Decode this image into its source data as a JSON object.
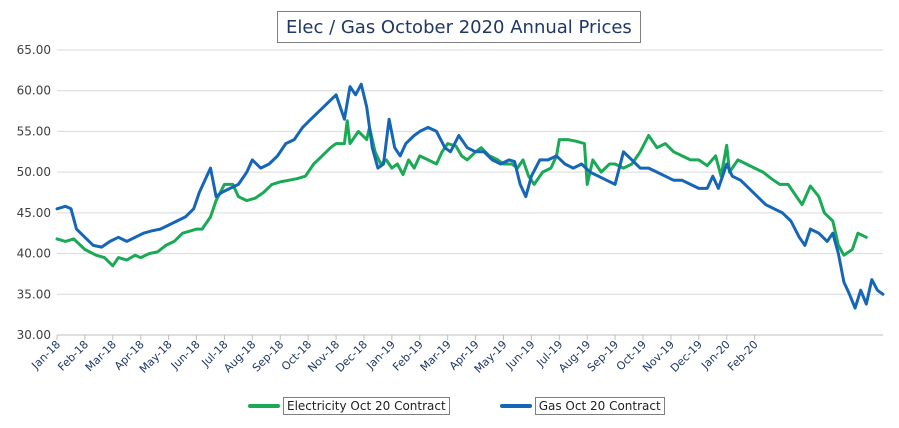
{
  "chart_data": {
    "type": "line",
    "title": "Elec / Gas October 2020 Annual Prices",
    "xlabel": "",
    "ylabel": "",
    "ylim": [
      30,
      65
    ],
    "yticks": [
      "30.00",
      "35.00",
      "40.00",
      "45.00",
      "50.00",
      "55.00",
      "60.00",
      "65.00"
    ],
    "x_categories": [
      "Jan-18",
      "Feb-18",
      "Mar-18",
      "Apr-18",
      "May-18",
      "Jun-18",
      "Jul-18",
      "Aug-18",
      "Sep-18",
      "Oct-18",
      "Nov-18",
      "Dec-18",
      "Jan-19",
      "Feb-19",
      "Mar-19",
      "Apr-19",
      "May-19",
      "Jun-19",
      "Jul-19",
      "Aug-19",
      "Sep-19",
      "Oct-19",
      "Nov-19",
      "Dec-19",
      "Jan-20",
      "Feb-20"
    ],
    "x_range_months": [
      0,
      26.4
    ],
    "grid": "horizontal",
    "legend_position": "bottom",
    "series": [
      {
        "name": "Electricity Oct 20 Contract",
        "color": "#1aaa55",
        "points": [
          [
            0,
            41.8
          ],
          [
            0.3,
            41.5
          ],
          [
            0.6,
            41.8
          ],
          [
            1.0,
            40.5
          ],
          [
            1.4,
            39.8
          ],
          [
            1.7,
            39.5
          ],
          [
            2.0,
            38.5
          ],
          [
            2.2,
            39.5
          ],
          [
            2.5,
            39.2
          ],
          [
            2.8,
            39.8
          ],
          [
            3.0,
            39.5
          ],
          [
            3.3,
            40.0
          ],
          [
            3.6,
            40.2
          ],
          [
            3.9,
            41.0
          ],
          [
            4.2,
            41.5
          ],
          [
            4.5,
            42.5
          ],
          [
            4.8,
            42.8
          ],
          [
            5.0,
            43.0
          ],
          [
            5.2,
            43.0
          ],
          [
            5.5,
            44.5
          ],
          [
            5.7,
            46.5
          ],
          [
            6.0,
            48.5
          ],
          [
            6.3,
            48.5
          ],
          [
            6.5,
            47.0
          ],
          [
            6.8,
            46.5
          ],
          [
            7.1,
            46.8
          ],
          [
            7.4,
            47.5
          ],
          [
            7.7,
            48.5
          ],
          [
            8.0,
            48.8
          ],
          [
            8.3,
            49.0
          ],
          [
            8.6,
            49.2
          ],
          [
            8.9,
            49.5
          ],
          [
            9.2,
            51.0
          ],
          [
            9.5,
            52.0
          ],
          [
            9.8,
            53.0
          ],
          [
            10.0,
            53.5
          ],
          [
            10.3,
            53.5
          ],
          [
            10.4,
            56.3
          ],
          [
            10.5,
            53.5
          ],
          [
            10.8,
            55.0
          ],
          [
            11.1,
            54.0
          ],
          [
            11.2,
            55.5
          ],
          [
            11.4,
            52.5
          ],
          [
            11.6,
            51.0
          ],
          [
            11.8,
            51.5
          ],
          [
            12.0,
            50.5
          ],
          [
            12.2,
            51.0
          ],
          [
            12.4,
            49.7
          ],
          [
            12.6,
            51.5
          ],
          [
            12.8,
            50.5
          ],
          [
            13.0,
            52.0
          ],
          [
            13.3,
            51.5
          ],
          [
            13.6,
            51.0
          ],
          [
            13.8,
            52.5
          ],
          [
            14.0,
            53.5
          ],
          [
            14.3,
            53.2
          ],
          [
            14.5,
            52.0
          ],
          [
            14.7,
            51.5
          ],
          [
            15.0,
            52.5
          ],
          [
            15.2,
            53.0
          ],
          [
            15.5,
            52.0
          ],
          [
            15.8,
            51.5
          ],
          [
            16.0,
            51.0
          ],
          [
            16.3,
            51.0
          ],
          [
            16.5,
            50.5
          ],
          [
            16.7,
            51.5
          ],
          [
            16.9,
            49.5
          ],
          [
            17.1,
            48.5
          ],
          [
            17.4,
            50.0
          ],
          [
            17.7,
            50.5
          ],
          [
            17.9,
            52.0
          ],
          [
            18.0,
            54.0
          ],
          [
            18.3,
            54.0
          ],
          [
            18.6,
            53.8
          ],
          [
            18.9,
            53.5
          ],
          [
            19.0,
            48.5
          ],
          [
            19.2,
            51.5
          ],
          [
            19.5,
            50.0
          ],
          [
            19.8,
            51.0
          ],
          [
            20.0,
            51.0
          ],
          [
            20.3,
            50.5
          ],
          [
            20.6,
            51.0
          ],
          [
            20.9,
            52.5
          ],
          [
            21.2,
            54.5
          ],
          [
            21.5,
            53.0
          ],
          [
            21.8,
            53.5
          ],
          [
            22.1,
            52.5
          ],
          [
            22.4,
            52.0
          ],
          [
            22.7,
            51.5
          ],
          [
            23.0,
            51.5
          ],
          [
            23.3,
            50.8
          ],
          [
            23.6,
            52.0
          ],
          [
            23.8,
            49.5
          ],
          [
            24.0,
            53.3
          ],
          [
            24.1,
            50.0
          ],
          [
            24.4,
            51.5
          ],
          [
            24.7,
            51.0
          ],
          [
            25.0,
            50.5
          ],
          [
            25.3,
            50.0
          ],
          [
            25.6,
            49.2
          ],
          [
            25.9,
            48.5
          ],
          [
            26.2,
            48.5
          ],
          [
            26.5,
            47.0
          ],
          [
            26.7,
            46.0
          ],
          [
            27.0,
            48.3
          ],
          [
            27.3,
            47.0
          ],
          [
            27.5,
            45.0
          ],
          [
            27.8,
            44.0
          ],
          [
            28.0,
            41.0
          ],
          [
            28.2,
            39.8
          ],
          [
            28.5,
            40.5
          ],
          [
            28.7,
            42.5
          ],
          [
            29.0,
            42.0
          ]
        ]
      },
      {
        "name": "Gas Oct 20 Contract",
        "color": "#1565b8",
        "points": [
          [
            0,
            45.5
          ],
          [
            0.3,
            45.8
          ],
          [
            0.5,
            45.5
          ],
          [
            0.7,
            43.0
          ],
          [
            1.0,
            42.0
          ],
          [
            1.3,
            41.0
          ],
          [
            1.6,
            40.8
          ],
          [
            1.9,
            41.5
          ],
          [
            2.2,
            42.0
          ],
          [
            2.5,
            41.5
          ],
          [
            2.8,
            42.0
          ],
          [
            3.1,
            42.5
          ],
          [
            3.4,
            42.8
          ],
          [
            3.7,
            43.0
          ],
          [
            4.0,
            43.5
          ],
          [
            4.3,
            44.0
          ],
          [
            4.6,
            44.5
          ],
          [
            4.9,
            45.5
          ],
          [
            5.1,
            47.5
          ],
          [
            5.3,
            49.0
          ],
          [
            5.5,
            50.5
          ],
          [
            5.7,
            47.0
          ],
          [
            5.9,
            47.5
          ],
          [
            6.2,
            48.0
          ],
          [
            6.5,
            48.5
          ],
          [
            6.8,
            50.0
          ],
          [
            7.0,
            51.5
          ],
          [
            7.3,
            50.5
          ],
          [
            7.6,
            51.0
          ],
          [
            7.9,
            52.0
          ],
          [
            8.2,
            53.5
          ],
          [
            8.5,
            54.0
          ],
          [
            8.8,
            55.5
          ],
          [
            9.1,
            56.5
          ],
          [
            9.4,
            57.5
          ],
          [
            9.7,
            58.5
          ],
          [
            10.0,
            59.5
          ],
          [
            10.3,
            56.5
          ],
          [
            10.5,
            60.5
          ],
          [
            10.7,
            59.5
          ],
          [
            10.9,
            60.8
          ],
          [
            11.1,
            58.0
          ],
          [
            11.3,
            53.0
          ],
          [
            11.5,
            50.5
          ],
          [
            11.7,
            51.0
          ],
          [
            11.9,
            56.5
          ],
          [
            12.1,
            53.0
          ],
          [
            12.3,
            52.0
          ],
          [
            12.5,
            53.5
          ],
          [
            12.8,
            54.5
          ],
          [
            13.0,
            55.0
          ],
          [
            13.3,
            55.5
          ],
          [
            13.6,
            55.0
          ],
          [
            13.9,
            53.0
          ],
          [
            14.1,
            52.5
          ],
          [
            14.4,
            54.5
          ],
          [
            14.7,
            53.0
          ],
          [
            15.0,
            52.5
          ],
          [
            15.3,
            52.5
          ],
          [
            15.6,
            51.5
          ],
          [
            15.9,
            51.0
          ],
          [
            16.2,
            51.5
          ],
          [
            16.4,
            51.3
          ],
          [
            16.6,
            48.5
          ],
          [
            16.8,
            47.0
          ],
          [
            17.0,
            49.5
          ],
          [
            17.3,
            51.5
          ],
          [
            17.6,
            51.5
          ],
          [
            17.9,
            52.0
          ],
          [
            18.2,
            51.0
          ],
          [
            18.5,
            50.5
          ],
          [
            18.8,
            51.0
          ],
          [
            19.1,
            50.0
          ],
          [
            19.4,
            49.5
          ],
          [
            19.7,
            49.0
          ],
          [
            20.0,
            48.5
          ],
          [
            20.3,
            52.5
          ],
          [
            20.6,
            51.5
          ],
          [
            20.9,
            50.5
          ],
          [
            21.2,
            50.5
          ],
          [
            21.5,
            50.0
          ],
          [
            21.8,
            49.5
          ],
          [
            22.1,
            49.0
          ],
          [
            22.4,
            49.0
          ],
          [
            22.7,
            48.5
          ],
          [
            23.0,
            48.0
          ],
          [
            23.3,
            48.0
          ],
          [
            23.5,
            49.5
          ],
          [
            23.7,
            48.0
          ],
          [
            24.0,
            51.0
          ],
          [
            24.2,
            49.5
          ],
          [
            24.5,
            49.0
          ],
          [
            24.8,
            48.0
          ],
          [
            25.1,
            47.0
          ],
          [
            25.4,
            46.0
          ],
          [
            25.7,
            45.5
          ],
          [
            26.0,
            45.0
          ],
          [
            26.3,
            44.0
          ],
          [
            26.6,
            42.0
          ],
          [
            26.8,
            41.0
          ],
          [
            27.0,
            43.0
          ],
          [
            27.3,
            42.5
          ],
          [
            27.6,
            41.5
          ],
          [
            27.8,
            42.5
          ],
          [
            28.0,
            40.0
          ],
          [
            28.2,
            36.5
          ],
          [
            28.4,
            35.0
          ],
          [
            28.6,
            33.3
          ],
          [
            28.8,
            35.5
          ],
          [
            29.0,
            33.8
          ],
          [
            29.2,
            36.8
          ],
          [
            29.4,
            35.5
          ],
          [
            29.6,
            35.0
          ]
        ]
      }
    ]
  }
}
